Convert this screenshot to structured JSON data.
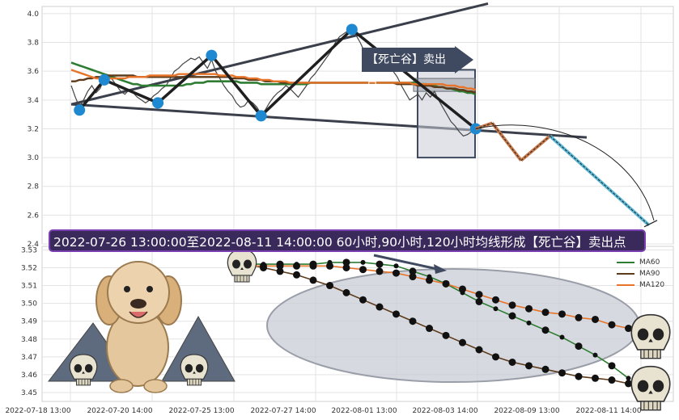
{
  "banner_text": "2022-07-26 13:00:00至2022-08-11 14:00:00 60小时,90小时,120小时均线形成【死亡谷】卖出点",
  "signal_label": "【死亡谷】卖出点",
  "colors": {
    "ma60": "#2e7d32",
    "ma90": "#5d3a1a",
    "ma120": "#e8742a",
    "price": "#444444",
    "zigzag": "#1f1f1f",
    "pivot": "#1e88d0",
    "trend": "#3a3f4b",
    "banner_bg": "#3a2a5c",
    "banner_border": "#7a3fb0"
  },
  "x_ticks": [
    "2022-07-18 13:00",
    "2022-07-20 14:00",
    "2022-07-25 13:00",
    "2022-07-27 14:00",
    "2022-08-01 13:00",
    "2022-08-03 14:00",
    "2022-08-09 13:00",
    "2022-08-11 14:00"
  ],
  "chart_data": [
    {
      "type": "line",
      "panel": "price",
      "ylim": [
        2.4,
        4.05
      ],
      "y_ticks": [
        2.4,
        2.6,
        2.8,
        3.0,
        3.2,
        3.4,
        3.6,
        3.8,
        4.0
      ],
      "grid": true,
      "pivots": [
        {
          "x": 2,
          "y": 3.33
        },
        {
          "x": 8,
          "y": 3.54
        },
        {
          "x": 21,
          "y": 3.38
        },
        {
          "x": 34,
          "y": 3.71
        },
        {
          "x": 46,
          "y": 3.29
        },
        {
          "x": 68,
          "y": 3.89
        },
        {
          "x": 98,
          "y": 3.2
        }
      ],
      "projection": [
        {
          "x": 98,
          "y": 3.2
        },
        {
          "x": 102,
          "y": 3.24
        },
        {
          "x": 109,
          "y": 2.98
        },
        {
          "x": 116,
          "y": 3.15
        },
        {
          "x": 140,
          "y": 2.53
        }
      ],
      "series": [
        {
          "name": "price",
          "values": [
            3.5,
            3.42,
            3.35,
            3.4,
            3.46,
            3.5,
            3.45,
            3.48,
            3.55,
            3.57,
            3.54,
            3.5,
            3.46,
            3.44,
            3.47,
            3.45,
            3.42,
            3.4,
            3.38,
            3.4,
            3.43,
            3.45,
            3.48,
            3.5,
            3.55,
            3.6,
            3.62,
            3.65,
            3.67,
            3.69,
            3.68,
            3.7,
            3.66,
            3.62,
            3.68,
            3.6,
            3.55,
            3.5,
            3.46,
            3.43,
            3.38,
            3.35,
            3.36,
            3.4,
            3.38,
            3.35,
            3.3,
            3.33,
            3.38,
            3.42,
            3.45,
            3.47,
            3.5,
            3.48,
            3.45,
            3.42,
            3.46,
            3.5,
            3.55,
            3.58,
            3.62,
            3.66,
            3.7,
            3.74,
            3.8,
            3.84,
            3.86,
            3.88,
            3.9,
            3.85,
            3.8,
            3.74,
            3.68,
            3.72,
            3.7,
            3.66,
            3.7,
            3.65,
            3.6,
            3.56,
            3.5,
            3.45,
            3.4,
            3.42,
            3.44,
            3.4,
            3.45,
            3.42,
            3.46,
            3.4,
            3.35,
            3.3,
            3.25,
            3.22,
            3.18,
            3.15,
            3.16,
            3.18,
            3.2
          ]
        },
        {
          "name": "MA60",
          "values": [
            3.66,
            3.65,
            3.64,
            3.63,
            3.62,
            3.61,
            3.6,
            3.59,
            3.58,
            3.57,
            3.56,
            3.55,
            3.54,
            3.53,
            3.52,
            3.51,
            3.51,
            3.5,
            3.5,
            3.5,
            3.5,
            3.5,
            3.5,
            3.5,
            3.5,
            3.5,
            3.5,
            3.5,
            3.51,
            3.51,
            3.52,
            3.52,
            3.52,
            3.53,
            3.53,
            3.53,
            3.53,
            3.53,
            3.53,
            3.53,
            3.53,
            3.52,
            3.52,
            3.52,
            3.52,
            3.52,
            3.51,
            3.51,
            3.51,
            3.51,
            3.51,
            3.51,
            3.51,
            3.51,
            3.51,
            3.51,
            3.51,
            3.51,
            3.52,
            3.52,
            3.52,
            3.52,
            3.52,
            3.52,
            3.52,
            3.52,
            3.52,
            3.52,
            3.52,
            3.52,
            3.52,
            3.52,
            3.52,
            3.52,
            3.52,
            3.52,
            3.52,
            3.52,
            3.52,
            3.52,
            3.52,
            3.52,
            3.52,
            3.52,
            3.51,
            3.51,
            3.51,
            3.5,
            3.5,
            3.49,
            3.49,
            3.48,
            3.48,
            3.47,
            3.46,
            3.46,
            3.45,
            3.45,
            3.44
          ]
        },
        {
          "name": "MA90",
          "values": [
            3.53,
            3.53,
            3.54,
            3.54,
            3.55,
            3.55,
            3.56,
            3.56,
            3.57,
            3.57,
            3.57,
            3.57,
            3.57,
            3.57,
            3.57,
            3.57,
            3.56,
            3.56,
            3.56,
            3.56,
            3.56,
            3.56,
            3.56,
            3.56,
            3.56,
            3.56,
            3.56,
            3.56,
            3.56,
            3.56,
            3.56,
            3.56,
            3.56,
            3.56,
            3.56,
            3.56,
            3.56,
            3.56,
            3.56,
            3.55,
            3.55,
            3.55,
            3.55,
            3.54,
            3.54,
            3.54,
            3.54,
            3.53,
            3.53,
            3.53,
            3.53,
            3.52,
            3.52,
            3.52,
            3.52,
            3.52,
            3.52,
            3.52,
            3.52,
            3.52,
            3.52,
            3.52,
            3.52,
            3.52,
            3.52,
            3.52,
            3.52,
            3.52,
            3.52,
            3.52,
            3.52,
            3.52,
            3.52,
            3.52,
            3.52,
            3.52,
            3.52,
            3.52,
            3.52,
            3.51,
            3.51,
            3.51,
            3.51,
            3.51,
            3.5,
            3.5,
            3.5,
            3.5,
            3.49,
            3.49,
            3.49,
            3.48,
            3.48,
            3.48,
            3.47,
            3.47,
            3.46,
            3.46,
            3.45
          ]
        },
        {
          "name": "MA120",
          "values": [
            3.61,
            3.6,
            3.59,
            3.58,
            3.57,
            3.56,
            3.55,
            3.55,
            3.55,
            3.55,
            3.55,
            3.55,
            3.55,
            3.55,
            3.56,
            3.56,
            3.56,
            3.56,
            3.56,
            3.57,
            3.57,
            3.57,
            3.57,
            3.57,
            3.57,
            3.57,
            3.58,
            3.58,
            3.58,
            3.58,
            3.58,
            3.58,
            3.58,
            3.58,
            3.58,
            3.58,
            3.57,
            3.57,
            3.57,
            3.57,
            3.56,
            3.56,
            3.56,
            3.55,
            3.55,
            3.55,
            3.54,
            3.54,
            3.54,
            3.53,
            3.53,
            3.53,
            3.53,
            3.52,
            3.52,
            3.52,
            3.52,
            3.52,
            3.52,
            3.52,
            3.52,
            3.52,
            3.52,
            3.52,
            3.52,
            3.52,
            3.52,
            3.52,
            3.52,
            3.52,
            3.52,
            3.52,
            3.52,
            3.52,
            3.52,
            3.52,
            3.52,
            3.52,
            3.52,
            3.52,
            3.52,
            3.52,
            3.52,
            3.51,
            3.51,
            3.51,
            3.51,
            3.51,
            3.51,
            3.51,
            3.51,
            3.5,
            3.5,
            3.5,
            3.49,
            3.49,
            3.48,
            3.48,
            3.47
          ]
        }
      ]
    },
    {
      "type": "line",
      "panel": "moving-average",
      "ylim": [
        3.445,
        3.532
      ],
      "y_ticks": [
        3.45,
        3.46,
        3.47,
        3.48,
        3.49,
        3.5,
        3.51,
        3.52,
        3.53
      ],
      "grid": true,
      "legend": "top-right",
      "x": [
        0,
        1,
        2,
        3,
        4,
        5,
        6,
        7,
        8,
        9,
        10,
        11,
        12,
        13,
        14,
        15,
        16,
        17,
        18,
        19,
        20,
        21,
        22,
        23
      ],
      "series": [
        {
          "name": "MA60",
          "values": [
            3.522,
            3.522,
            3.522,
            3.522,
            3.522,
            3.523,
            3.523,
            3.523,
            3.522,
            3.521,
            3.518,
            3.515,
            3.511,
            3.506,
            3.501,
            3.497,
            3.493,
            3.489,
            3.485,
            3.481,
            3.476,
            3.471,
            3.465,
            3.458
          ]
        },
        {
          "name": "MA90",
          "values": [
            3.522,
            3.52,
            3.518,
            3.516,
            3.513,
            3.51,
            3.506,
            3.502,
            3.498,
            3.494,
            3.49,
            3.486,
            3.482,
            3.478,
            3.474,
            3.47,
            3.467,
            3.465,
            3.463,
            3.461,
            3.459,
            3.458,
            3.457,
            3.455
          ]
        },
        {
          "name": "MA120",
          "values": [
            3.521,
            3.521,
            3.521,
            3.521,
            3.521,
            3.521,
            3.52,
            3.519,
            3.518,
            3.517,
            3.515,
            3.513,
            3.511,
            3.508,
            3.505,
            3.502,
            3.499,
            3.497,
            3.495,
            3.494,
            3.492,
            3.491,
            3.488,
            3.486
          ]
        }
      ]
    }
  ]
}
